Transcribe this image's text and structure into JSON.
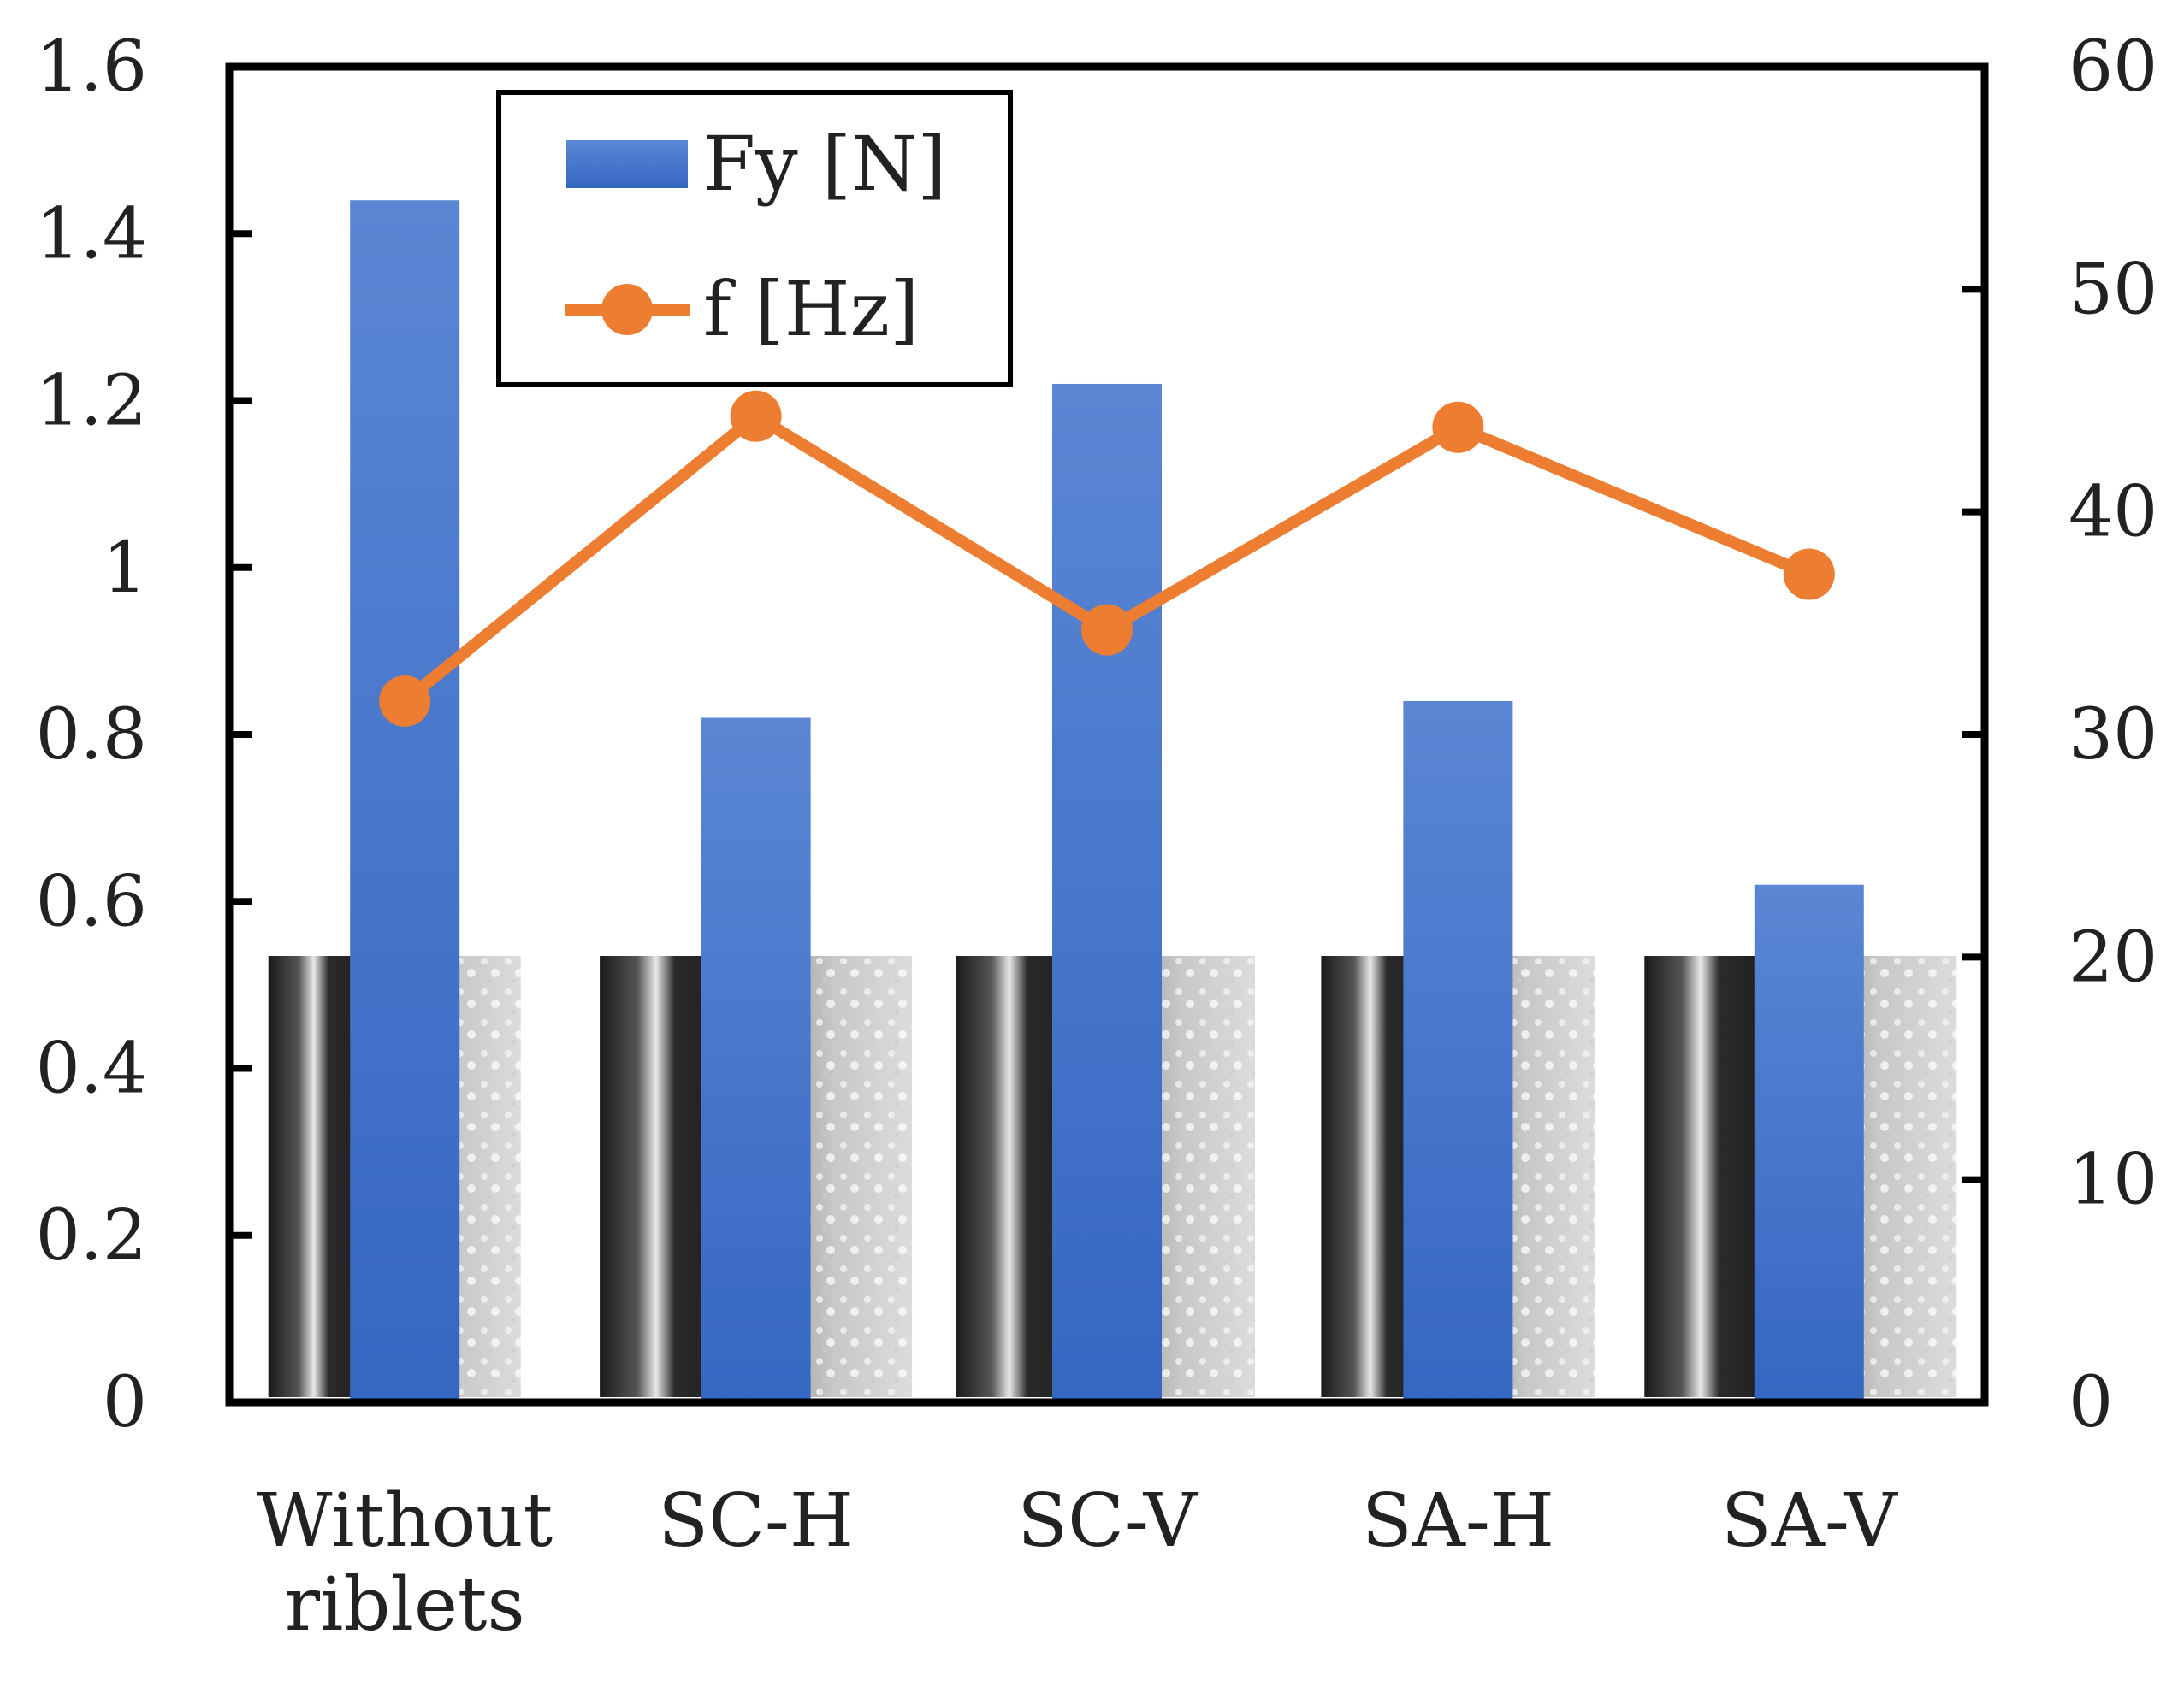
{
  "chart_data": {
    "type": "bar",
    "categories": [
      [
        "Without",
        "riblets"
      ],
      [
        "SC-H"
      ],
      [
        "SC-V"
      ],
      [
        "SA-H"
      ],
      [
        "SA-V"
      ]
    ],
    "series": [
      {
        "name": "Fy [N]",
        "type": "bar",
        "axis": "left",
        "color": "#4472c4",
        "values": [
          1.44,
          0.82,
          1.22,
          0.84,
          0.62
        ]
      },
      {
        "name": "f [Hz]",
        "type": "line",
        "axis": "right",
        "color": "#ed7d31",
        "marker": "circle",
        "values": [
          31.5,
          44.3,
          34.7,
          43.8,
          37.2
        ]
      }
    ],
    "y_left": {
      "ylim": [
        0,
        1.6
      ],
      "ticks": [
        "0",
        "0.2",
        "0.4",
        "0.6",
        "0.8",
        "1",
        "1.2",
        "1.4",
        "1.6"
      ]
    },
    "y_right": {
      "ylim": [
        0,
        60
      ],
      "ticks": [
        "0",
        "10",
        "20",
        "30",
        "40",
        "50",
        "60"
      ]
    },
    "title": "",
    "xlabel": "",
    "ylabel": "",
    "legend_position": "top-left",
    "grid": false,
    "photo_insets": {
      "count": 5,
      "style": "grayscale",
      "content": "photographs of flow over riblet surfaces"
    }
  }
}
